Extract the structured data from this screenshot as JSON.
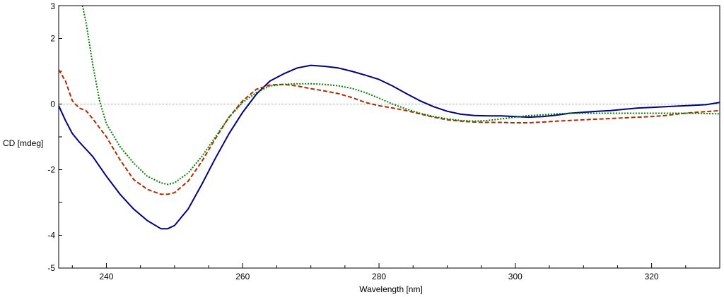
{
  "chart_data": {
    "type": "line",
    "title": "",
    "xlabel": "Wavelength [nm]",
    "ylabel": "CD [mdeg]",
    "xlim": [
      233,
      330
    ],
    "ylim": [
      -5,
      3
    ],
    "x_ticks": [
      240,
      260,
      280,
      300,
      320
    ],
    "x_tick_labels": [
      "240",
      "260",
      "280",
      "300",
      "320"
    ],
    "y_ticks": [
      3,
      2,
      0,
      -2,
      -4,
      -5
    ],
    "y_tick_labels": [
      "3",
      "2",
      "0",
      "-2",
      "-4",
      "-5"
    ],
    "zero_line": true,
    "grid": false,
    "legend": "none",
    "series": [
      {
        "color": "#000080",
        "style": "solid",
        "x": [
          233,
          234,
          235,
          236,
          238,
          240,
          242,
          244,
          246,
          248,
          249,
          250,
          252,
          254,
          256,
          258,
          260,
          262,
          264,
          266,
          268,
          270,
          272,
          274,
          276,
          278,
          280,
          282,
          284,
          286,
          288,
          290,
          292,
          294,
          296,
          298,
          300,
          302,
          304,
          306,
          308,
          310,
          312,
          314,
          316,
          318,
          320,
          322,
          324,
          326,
          328,
          330
        ],
        "y": [
          -0.05,
          -0.5,
          -0.9,
          -1.15,
          -1.6,
          -2.2,
          -2.75,
          -3.2,
          -3.55,
          -3.8,
          -3.8,
          -3.7,
          -3.2,
          -2.45,
          -1.65,
          -0.9,
          -0.25,
          0.3,
          0.7,
          0.92,
          1.1,
          1.18,
          1.15,
          1.1,
          1.0,
          0.88,
          0.75,
          0.55,
          0.32,
          0.1,
          -0.08,
          -0.22,
          -0.31,
          -0.35,
          -0.36,
          -0.36,
          -0.38,
          -0.4,
          -0.38,
          -0.34,
          -0.28,
          -0.25,
          -0.22,
          -0.2,
          -0.16,
          -0.12,
          -0.1,
          -0.08,
          -0.06,
          -0.04,
          -0.02,
          0.05
        ]
      },
      {
        "color": "#b02a00",
        "style": "dashed",
        "x": [
          233,
          234,
          235,
          236,
          237,
          238,
          240,
          242,
          244,
          246,
          248,
          249,
          250,
          252,
          254,
          256,
          258,
          260,
          262,
          264,
          266,
          268,
          270,
          272,
          274,
          276,
          278,
          280,
          282,
          284,
          286,
          288,
          290,
          292,
          294,
          296,
          298,
          300,
          302,
          304,
          306,
          308,
          310,
          312,
          314,
          316,
          318,
          320,
          322,
          324,
          326,
          328,
          330
        ],
        "y": [
          1.05,
          0.7,
          0.1,
          -0.12,
          -0.2,
          -0.45,
          -1.0,
          -1.7,
          -2.3,
          -2.6,
          -2.75,
          -2.75,
          -2.7,
          -2.35,
          -1.75,
          -1.05,
          -0.4,
          0.1,
          0.45,
          0.58,
          0.6,
          0.55,
          0.47,
          0.4,
          0.32,
          0.2,
          0.05,
          -0.05,
          -0.12,
          -0.2,
          -0.3,
          -0.4,
          -0.48,
          -0.52,
          -0.55,
          -0.56,
          -0.56,
          -0.57,
          -0.57,
          -0.55,
          -0.52,
          -0.5,
          -0.48,
          -0.46,
          -0.44,
          -0.42,
          -0.4,
          -0.38,
          -0.35,
          -0.3,
          -0.26,
          -0.23,
          -0.2
        ]
      },
      {
        "color": "#008000",
        "style": "dotted",
        "x": [
          236.5,
          237,
          238,
          239,
          240,
          242,
          244,
          246,
          248,
          249,
          250,
          252,
          254,
          256,
          258,
          260,
          262,
          264,
          266,
          268,
          270,
          272,
          274,
          276,
          278,
          280,
          282,
          284,
          286,
          288,
          290,
          292,
          294,
          296,
          298,
          300,
          302,
          304,
          306,
          308,
          310,
          312,
          314,
          316,
          318,
          320,
          322,
          324,
          326,
          328,
          330
        ],
        "y": [
          3.0,
          2.5,
          1.2,
          0.1,
          -0.6,
          -1.3,
          -1.8,
          -2.2,
          -2.4,
          -2.45,
          -2.4,
          -2.1,
          -1.6,
          -1.0,
          -0.4,
          0.05,
          0.35,
          0.55,
          0.6,
          0.62,
          0.62,
          0.6,
          0.56,
          0.48,
          0.35,
          0.18,
          0.0,
          -0.15,
          -0.28,
          -0.38,
          -0.45,
          -0.5,
          -0.52,
          -0.5,
          -0.45,
          -0.4,
          -0.35,
          -0.33,
          -0.3,
          -0.28,
          -0.28,
          -0.28,
          -0.28,
          -0.28,
          -0.28,
          -0.28,
          -0.28,
          -0.28,
          -0.28,
          -0.29,
          -0.3
        ]
      }
    ]
  }
}
